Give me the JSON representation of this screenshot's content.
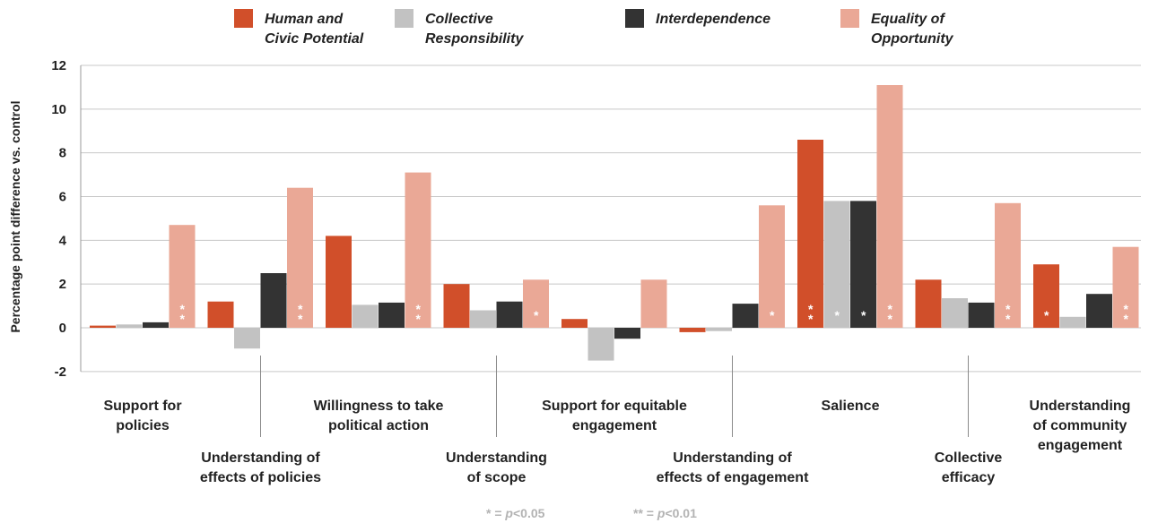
{
  "chart_data": {
    "type": "bar",
    "ylabel": "Percentage point difference vs. control",
    "ylim": [
      -2,
      12
    ],
    "yticks": [
      "12",
      "10",
      "8",
      "6",
      "4",
      "2",
      "0",
      "-2"
    ],
    "legend_position": "top",
    "grid": true,
    "categories": [
      [
        "Support for",
        "policies"
      ],
      [
        "Understanding of",
        "effects of policies"
      ],
      [
        "Willingness to take",
        "political action"
      ],
      [
        "Understanding",
        "of scope"
      ],
      [
        "Support for equitable",
        "engagement"
      ],
      [
        "Understanding of",
        "effects of engagement"
      ],
      [
        "Salience"
      ],
      [
        "Collective",
        "efficacy"
      ],
      [
        "Understanding",
        "of community",
        "engagement"
      ]
    ],
    "series": [
      {
        "name": [
          "Human and",
          "Civic Potential"
        ],
        "color": "#d14f2a",
        "values": [
          0.1,
          1.2,
          4.2,
          2.0,
          0.4,
          -0.2,
          8.6,
          2.2,
          2.9
        ],
        "sig": [
          "",
          "",
          "",
          "",
          "",
          "",
          "**",
          "",
          "*"
        ]
      },
      {
        "name": [
          "Collective",
          "Responsibility"
        ],
        "color": "#c2c2c2",
        "values": [
          0.15,
          -0.95,
          1.05,
          0.8,
          -1.5,
          -0.15,
          5.8,
          1.35,
          0.5
        ],
        "sig": [
          "",
          "",
          "",
          "",
          "",
          "",
          "*",
          "",
          ""
        ]
      },
      {
        "name": [
          "Interdependence"
        ],
        "color": "#333333",
        "values": [
          0.25,
          2.5,
          1.15,
          1.2,
          -0.5,
          1.1,
          5.8,
          1.15,
          1.55
        ],
        "sig": [
          "",
          "",
          "",
          "",
          "",
          "",
          "*",
          "",
          ""
        ]
      },
      {
        "name": [
          "Equality of",
          "Opportunity"
        ],
        "color": "#eaa896",
        "values": [
          4.7,
          6.4,
          7.1,
          2.2,
          2.2,
          5.6,
          11.1,
          5.7,
          3.7
        ],
        "sig": [
          "**",
          "**",
          "**",
          "*",
          "",
          "*",
          "**",
          "**",
          "**"
        ]
      }
    ],
    "significance_legend": [
      {
        "stars": "*",
        "text": " = ",
        "p": "p",
        "value": "<0.05"
      },
      {
        "stars": "**",
        "text": " = ",
        "p": "p",
        "value": "<0.01"
      }
    ]
  }
}
